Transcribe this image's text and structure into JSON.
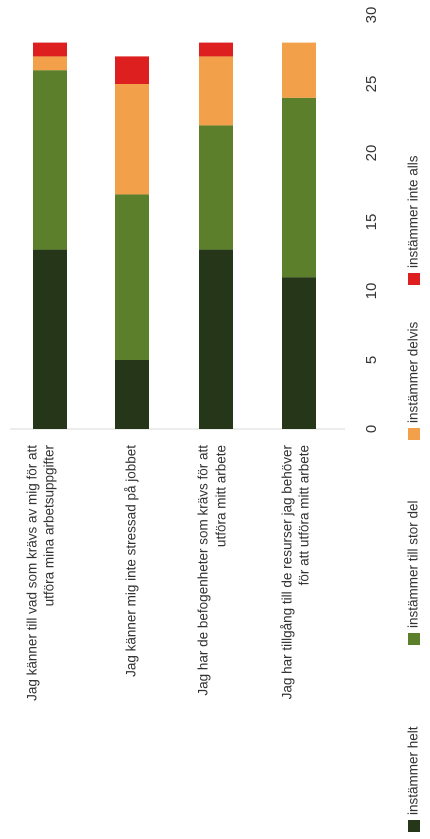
{
  "chart_data": {
    "type": "bar",
    "stacked": true,
    "orientation": "vertical-rotated",
    "categories": [
      [
        "Jag känner till vad som krävs av mig för att",
        "utföra mina arbetsuppgifter"
      ],
      [
        "Jag känner mig inte stressad  på jobbet"
      ],
      [
        "Jag har de befogenheter som krävs för att",
        "utföra mitt arbete"
      ],
      [
        "Jag har tillgång till de resurser jag behöver",
        "för att utföra mitt arbete"
      ]
    ],
    "series": [
      {
        "name": "instämmer helt",
        "color": "#263618",
        "values": [
          13,
          5,
          13,
          11
        ]
      },
      {
        "name": "instämmer till stor del",
        "color": "#5b7f2b",
        "values": [
          13,
          12,
          9,
          13
        ]
      },
      {
        "name": "instämmer delvis",
        "color": "#f2a04a",
        "values": [
          1,
          8,
          5,
          4
        ]
      },
      {
        "name": "instämmer inte alls",
        "color": "#dd1f1f",
        "values": [
          1,
          2,
          1,
          0
        ]
      }
    ],
    "ticks": [
      "0",
      "5",
      "10",
      "15",
      "20",
      "25",
      "30"
    ],
    "ylim": [
      0,
      30
    ],
    "grid": false,
    "legend_position": "right"
  }
}
